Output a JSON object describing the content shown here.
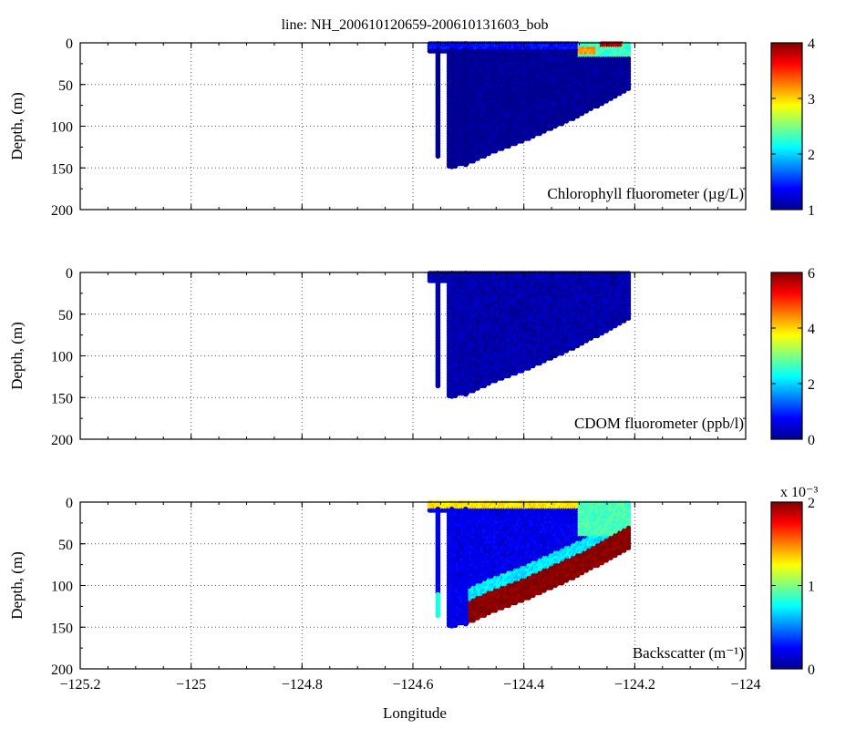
{
  "title": "line: NH_200610120659-200610131603_bob",
  "xlabel": "Longitude",
  "colormap": [
    "#00008f",
    "#0000ff",
    "#0080ff",
    "#00ffff",
    "#80ff80",
    "#ffff00",
    "#ff8000",
    "#ff0000",
    "#800000"
  ],
  "chart_data": [
    {
      "type": "scatter",
      "annotation": "Chlorophyll fluorometer (µg/L)",
      "ylabel": "Depth, (m)",
      "xlim": [
        -125.2,
        -124.0
      ],
      "ylim": [
        200,
        0
      ],
      "x_ticks": [
        "−125.2",
        "−125",
        "−124.8",
        "−124.6",
        "−124.4",
        "−124.2",
        "−124"
      ],
      "y_ticks": [
        "0",
        "50",
        "100",
        "150",
        "200"
      ],
      "grid": true,
      "colorbar": {
        "range": [
          1,
          4
        ],
        "ticks": [
          "1",
          "2",
          "3",
          "4"
        ],
        "multiplier": ""
      },
      "section": {
        "x_start": -124.57,
        "x_end": -124.21,
        "bottom_depth": [
          [
            -124.57,
            10
          ],
          [
            -124.55,
            12
          ],
          [
            -124.535,
            150
          ],
          [
            -124.5,
            145
          ],
          [
            -124.45,
            130
          ],
          [
            -124.4,
            118
          ],
          [
            -124.35,
            103
          ],
          [
            -124.3,
            88
          ],
          [
            -124.25,
            70
          ],
          [
            -124.21,
            55
          ]
        ],
        "dives": [
          {
            "x": -124.555,
            "bottom": 138
          },
          {
            "x": -124.53,
            "bottom": 150
          },
          {
            "x": -124.505,
            "bottom": 146
          }
        ]
      },
      "features": [
        {
          "x": [
            -124.3,
            -124.21
          ],
          "depth": [
            0,
            18
          ],
          "value": 2.3
        },
        {
          "x": [
            -124.3,
            -124.27
          ],
          "depth": [
            5,
            14
          ],
          "value": 3.2
        },
        {
          "x": [
            -124.57,
            -124.3
          ],
          "depth": [
            0,
            8
          ],
          "value": 1.4
        },
        {
          "x": [
            -124.26,
            -124.22
          ],
          "depth": [
            0,
            6
          ],
          "value": 3.8
        }
      ],
      "background_value": 1.0
    },
    {
      "type": "scatter",
      "annotation": "CDOM fluorometer (ppb/l)",
      "ylabel": "Depth, (m)",
      "xlim": [
        -125.2,
        -124.0
      ],
      "ylim": [
        200,
        0
      ],
      "x_ticks": [
        "−125.2",
        "−125",
        "−124.8",
        "−124.6",
        "−124.4",
        "−124.2",
        "−124"
      ],
      "y_ticks": [
        "0",
        "50",
        "100",
        "150",
        "200"
      ],
      "grid": true,
      "colorbar": {
        "range": [
          0,
          6
        ],
        "ticks": [
          "0",
          "2",
          "4",
          "6"
        ],
        "multiplier": ""
      },
      "section": {
        "x_start": -124.57,
        "x_end": -124.21,
        "bottom_depth": [
          [
            -124.57,
            10
          ],
          [
            -124.55,
            12
          ],
          [
            -124.535,
            150
          ],
          [
            -124.5,
            145
          ],
          [
            -124.45,
            130
          ],
          [
            -124.4,
            118
          ],
          [
            -124.35,
            103
          ],
          [
            -124.3,
            88
          ],
          [
            -124.25,
            70
          ],
          [
            -124.21,
            55
          ]
        ],
        "dives": [
          {
            "x": -124.555,
            "bottom": 138
          },
          {
            "x": -124.53,
            "bottom": 150
          },
          {
            "x": -124.505,
            "bottom": 146
          }
        ]
      },
      "features": [],
      "background_value": 0.2
    },
    {
      "type": "scatter",
      "annotation": "Backscatter (m⁻¹)",
      "ylabel": "Depth, (m)",
      "xlim": [
        -125.2,
        -124.0
      ],
      "ylim": [
        200,
        0
      ],
      "x_ticks": [
        "−125.2",
        "−125",
        "−124.8",
        "−124.6",
        "−124.4",
        "−124.2",
        "−124"
      ],
      "y_ticks": [
        "0",
        "50",
        "100",
        "150",
        "200"
      ],
      "grid": true,
      "colorbar": {
        "range": [
          0,
          0.002
        ],
        "ticks": [
          "0",
          "1",
          "2"
        ],
        "multiplier": "x 10⁻³"
      },
      "section": {
        "x_start": -124.57,
        "x_end": -124.21,
        "bottom_depth": [
          [
            -124.57,
            10
          ],
          [
            -124.55,
            12
          ],
          [
            -124.535,
            150
          ],
          [
            -124.5,
            145
          ],
          [
            -124.45,
            130
          ],
          [
            -124.4,
            118
          ],
          [
            -124.35,
            103
          ],
          [
            -124.3,
            88
          ],
          [
            -124.25,
            70
          ],
          [
            -124.21,
            55
          ]
        ],
        "dives": [
          {
            "x": -124.555,
            "bottom": 138
          },
          {
            "x": -124.53,
            "bottom": 150
          },
          {
            "x": -124.505,
            "bottom": 146
          }
        ]
      },
      "features": [
        {
          "x": [
            -124.57,
            -124.21
          ],
          "depth": [
            0,
            8
          ],
          "value": 0.0013
        },
        {
          "x": [
            -124.3,
            -124.21
          ],
          "depth": [
            0,
            40
          ],
          "value": 0.0009
        },
        {
          "x": [
            -124.5,
            -124.21
          ],
          "depth_above_bottom": 25,
          "value": 0.002
        },
        {
          "x": [
            -124.5,
            -124.21
          ],
          "depth_above_bottom": 40,
          "value": 0.0007
        },
        {
          "x": [
            -124.57,
            -124.54
          ],
          "depth": [
            110,
            150
          ],
          "value": 0.0008
        }
      ],
      "background_value": 0.0002
    }
  ]
}
